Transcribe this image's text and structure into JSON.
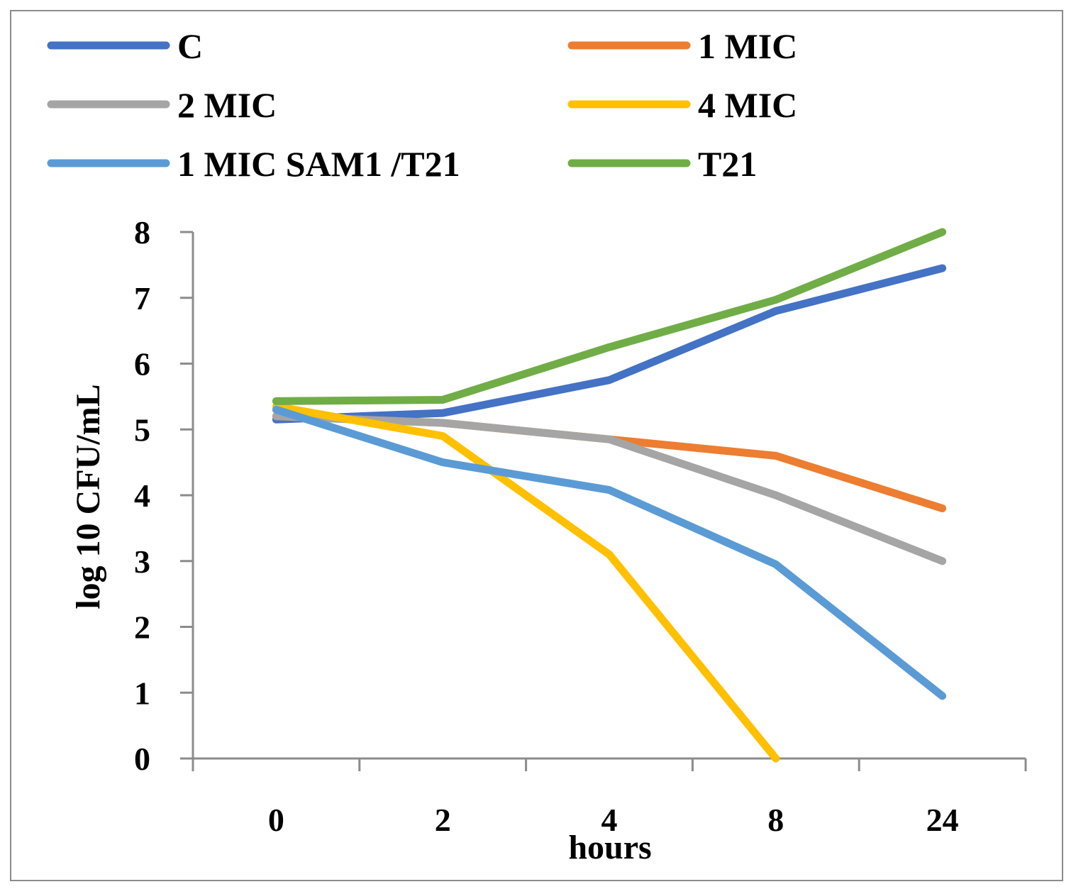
{
  "chart_data": {
    "type": "line",
    "title": "",
    "xlabel": "hours",
    "ylabel": "log 10 CFU/mL",
    "categories": [
      "0",
      "2",
      "4",
      "8",
      "24"
    ],
    "ylim": [
      0,
      8
    ],
    "yticks": [
      "0",
      "1",
      "2",
      "3",
      "4",
      "5",
      "6",
      "7",
      "8"
    ],
    "grid": false,
    "legend_position": "top",
    "series": [
      {
        "name": "C",
        "color": "#4472c4",
        "values": [
          5.15,
          5.25,
          5.75,
          6.8,
          7.45
        ]
      },
      {
        "name": "1 MIC",
        "color": "#ed7d31",
        "values": [
          5.2,
          5.1,
          4.85,
          4.6,
          3.8
        ]
      },
      {
        "name": "2 MIC",
        "color": "#a5a5a5",
        "values": [
          5.2,
          5.1,
          4.85,
          4.0,
          3.0
        ]
      },
      {
        "name": "4 MIC",
        "color": "#ffc000",
        "values": [
          5.35,
          4.9,
          3.1,
          0.0,
          null
        ]
      },
      {
        "name": "1 MIC SAM1 /T21",
        "color": "#5b9bd5",
        "values": [
          5.3,
          4.5,
          4.08,
          2.95,
          0.95
        ]
      },
      {
        "name": "T21",
        "color": "#70ad47",
        "values": [
          5.43,
          5.45,
          6.25,
          6.97,
          8.0
        ]
      }
    ]
  }
}
